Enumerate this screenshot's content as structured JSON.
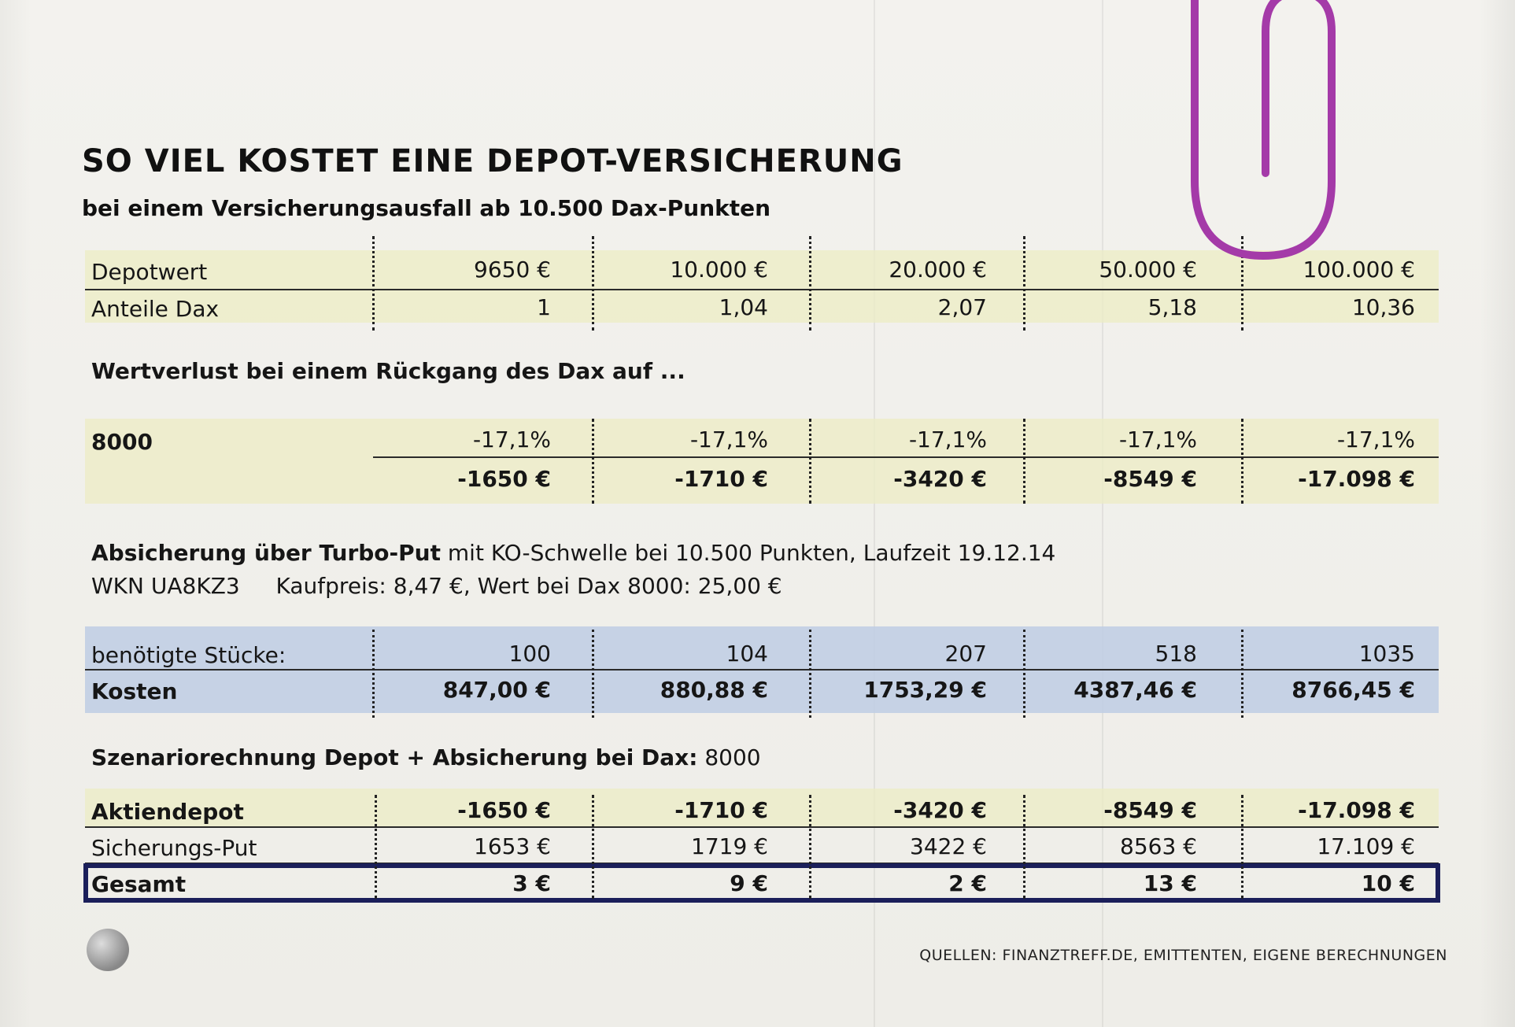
{
  "title": "SO VIEL KOSTET EINE DEPOT-VERSICHERUNG",
  "subtitle": "bei einem Versicherungsausfall ab 10.500 Dax-Punkten",
  "depot": {
    "rows": [
      {
        "label": "Depotwert",
        "values": [
          "9650 €",
          "10.000 €",
          "20.000 €",
          "50.000 €",
          "100.000 €"
        ]
      },
      {
        "label": "Anteile Dax",
        "values": [
          "1",
          "1,04",
          "2,07",
          "5,18",
          "10,36"
        ]
      }
    ]
  },
  "loss": {
    "heading": "Wertverlust bei einem Rückgang des Dax auf ...",
    "level": "8000",
    "percent": [
      "-17,1%",
      "-17,1%",
      "-17,1%",
      "-17,1%",
      "-17,1%"
    ],
    "amount": [
      "-1650 €",
      "-1710 €",
      "-3420 €",
      "-8549 €",
      "-17.098 €"
    ]
  },
  "hedge": {
    "heading_bold": "Absicherung über Turbo-Put",
    "heading_rest": "mit KO-Schwelle bei 10.500 Punkten, Laufzeit 19.12.14",
    "wkn": "WKN UA8KZ3",
    "price_info": "Kaufpreis: 8,47 €, Wert bei Dax 8000: 25,00 €",
    "rows": [
      {
        "label": "benötigte Stücke:",
        "values": [
          "100",
          "104",
          "207",
          "518",
          "1035"
        ]
      },
      {
        "label": "Kosten",
        "values": [
          "847,00 €",
          "880,88 €",
          "1753,29 €",
          "4387,46 €",
          "8766,45 €"
        ]
      }
    ]
  },
  "scenario": {
    "heading_bold": "Szenariorechnung Depot + Absicherung bei Dax:",
    "heading_value": "8000",
    "rows": [
      {
        "label": "Aktiendepot",
        "values": [
          "-1650 €",
          "-1710 €",
          "-3420 €",
          "-8549 €",
          "-17.098 €"
        ]
      },
      {
        "label": "Sicherungs-Put",
        "values": [
          "1653 €",
          "1719 €",
          "3422 €",
          "8563 €",
          "17.109 €"
        ]
      },
      {
        "label": "Gesamt",
        "values": [
          "3 €",
          "9 €",
          "2 €",
          "13 €",
          "10 €"
        ]
      }
    ]
  },
  "source": "QUELLEN: FINANZTREFF.DE, EMITTENTEN, EIGENE BERECHNUNGEN",
  "colors": {
    "yellow_band": "#ececc4",
    "blue_band": "#becde4",
    "total_border": "#1b1f5a",
    "paperclip": "#a43aa8"
  }
}
